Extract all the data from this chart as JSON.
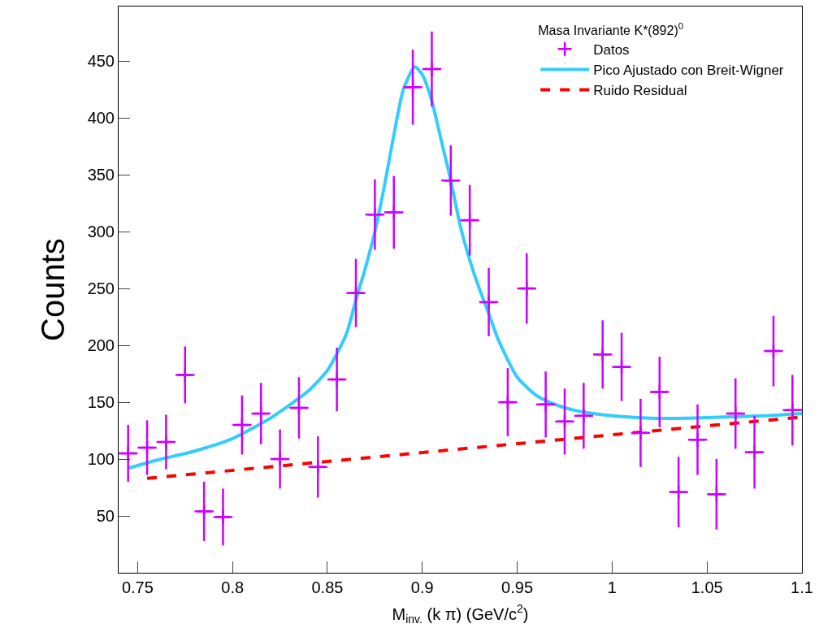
{
  "chart_data": {
    "type": "scatter",
    "xlabel": "M$_{inv.}$ (k π) (GeV/c$^{2}$)",
    "ylabel": "Counts",
    "legend_title": "Masa Invariante K*(892)$^{0}$",
    "xlim": [
      0.74,
      1.1
    ],
    "xticks": [
      {
        "value": 0.75,
        "label": "0.75"
      },
      {
        "value": 0.8,
        "label": "0.8"
      },
      {
        "value": 0.85,
        "label": "0.85"
      },
      {
        "value": 0.9,
        "label": "0.9"
      },
      {
        "value": 0.95,
        "label": "0.95"
      },
      {
        "value": 1,
        "label": "1"
      },
      {
        "value": 1.05,
        "label": "1.05"
      },
      {
        "value": 1.1,
        "label": "1.1"
      }
    ],
    "ylim": [
      0,
      498
    ],
    "yticks": [
      50,
      100,
      150,
      200,
      250,
      300,
      350,
      400,
      450
    ],
    "legend": "top right",
    "series": [
      {
        "name": "Datos",
        "marker": "cross",
        "color": "#cc00ff",
        "x": [
          0.745,
          0.755,
          0.765,
          0.775,
          0.785,
          0.795,
          0.805,
          0.815,
          0.825,
          0.835,
          0.845,
          0.855,
          0.865,
          0.875,
          0.885,
          0.895,
          0.905,
          0.915,
          0.925,
          0.935,
          0.945,
          0.955,
          0.965,
          0.975,
          0.985,
          0.995,
          1.005,
          1.015,
          1.025,
          1.035,
          1.045,
          1.055,
          1.065,
          1.075,
          1.085,
          1.095
        ],
        "values": [
          105,
          110,
          115,
          174,
          54,
          49,
          130,
          140,
          100,
          145,
          93,
          170,
          246,
          315,
          317,
          427,
          443,
          345,
          310,
          238,
          150,
          250,
          148,
          133,
          138,
          192,
          181,
          123,
          159,
          71,
          117,
          69,
          140,
          106,
          195,
          143
        ],
        "errors": [
          25,
          24,
          24,
          25,
          26,
          25,
          26,
          27,
          26,
          27,
          27,
          28,
          30,
          31,
          32,
          33,
          33,
          31,
          31,
          30,
          30,
          31,
          29,
          29,
          29,
          30,
          30,
          30,
          31,
          31,
          31,
          31,
          31,
          32,
          31,
          31
        ],
        "xerrors": [
          0.005,
          0.005,
          0.005,
          0.005,
          0.005,
          0.005,
          0.005,
          0.005,
          0.005,
          0.005,
          0.005,
          0.005,
          0.005,
          0.005,
          0.005,
          0.005,
          0.005,
          0.005,
          0.005,
          0.005,
          0.005,
          0.005,
          0.005,
          0.005,
          0.005,
          0.005,
          0.005,
          0.005,
          0.005,
          0.005,
          0.005,
          0.005,
          0.005,
          0.005,
          0.005,
          0.005
        ]
      },
      {
        "name": "Pico Ajustado con Breit-Wigner",
        "type": "line",
        "color": "#33ccff",
        "line_style": "solid",
        "x": [
          0.745,
          0.76,
          0.78,
          0.8,
          0.82,
          0.84,
          0.85,
          0.86,
          0.865,
          0.87,
          0.875,
          0.88,
          0.885,
          0.89,
          0.896,
          0.9,
          0.905,
          0.91,
          0.915,
          0.92,
          0.925,
          0.93,
          0.935,
          0.94,
          0.95,
          0.96,
          0.97,
          0.98,
          0.99,
          1.0,
          1.02,
          1.04,
          1.06,
          1.08,
          1.1
        ],
        "values": [
          92,
          99,
          107,
          118,
          136,
          160,
          178,
          210,
          240,
          268,
          300,
          340,
          385,
          425,
          445,
          438,
          415,
          380,
          345,
          305,
          275,
          250,
          228,
          205,
          172,
          156,
          148,
          143,
          140,
          138,
          136,
          136,
          137,
          138,
          140
        ]
      },
      {
        "name": "Ruido Residual",
        "type": "line",
        "color": "#ff0000",
        "line_style": "dashed",
        "x": [
          0.755,
          1.1
        ],
        "values": [
          83,
          137
        ]
      }
    ]
  }
}
